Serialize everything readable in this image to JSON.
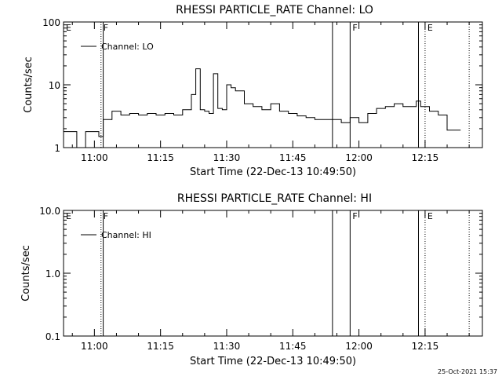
{
  "footer_timestamp": "25-Oct-2021 15:37",
  "chart_data": [
    {
      "type": "line",
      "title": "RHESSI PARTICLE_RATE Channel: LO",
      "xlabel": "Start Time (22-Dec-13 10:49:50)",
      "ylabel": "Counts/sec",
      "yscale": "log",
      "xlim": [
        "10:53",
        "12:28"
      ],
      "ylim": [
        1,
        100
      ],
      "x_ticks": [
        "11:00",
        "11:15",
        "11:30",
        "11:45",
        "12:00",
        "12:15"
      ],
      "y_ticks": [
        "1",
        "10",
        "100"
      ],
      "legend": {
        "position": "top-left",
        "entries": [
          "Channel: LO"
        ]
      },
      "markers": [
        {
          "label": "E",
          "time": "10:53",
          "style": "none"
        },
        {
          "label": "F",
          "time": "11:01.5",
          "style": "dotted"
        },
        {
          "label": "",
          "time": "11:02",
          "style": "solid"
        },
        {
          "label": "",
          "time": "11:54",
          "style": "solid"
        },
        {
          "label": "F",
          "time": "11:58",
          "style": "solid"
        },
        {
          "label": "",
          "time": "12:13.5",
          "style": "solid"
        },
        {
          "label": "E",
          "time": "12:15",
          "style": "dotted"
        },
        {
          "label": "",
          "time": "12:25",
          "style": "dotted"
        }
      ],
      "series": [
        {
          "name": "Channel: LO",
          "x": [
            "10:53",
            "10:55",
            "10:56",
            "10:58",
            "11:00",
            "11:01",
            "11:02",
            "11:04",
            "11:06",
            "11:08",
            "11:10",
            "11:12",
            "11:14",
            "11:16",
            "11:18",
            "11:20",
            "11:22",
            "11:23",
            "11:24",
            "11:25",
            "11:26",
            "11:27",
            "11:28",
            "11:29",
            "11:30",
            "11:31",
            "11:32",
            "11:34",
            "11:36",
            "11:38",
            "11:40",
            "11:42",
            "11:44",
            "11:46",
            "11:48",
            "11:50",
            "11:52",
            "11:54",
            "11:56",
            "11:58",
            "12:00",
            "12:02",
            "12:04",
            "12:06",
            "12:08",
            "12:10",
            "12:12",
            "12:13",
            "12:14",
            "12:16",
            "12:18",
            "12:20",
            "12:22"
          ],
          "y": [
            1.8,
            1.8,
            1.0,
            1.8,
            1.8,
            1.5,
            2.8,
            3.8,
            3.3,
            3.5,
            3.3,
            3.5,
            3.3,
            3.5,
            3.3,
            4.0,
            7.0,
            18.0,
            4.0,
            3.8,
            3.5,
            15.0,
            4.2,
            4.0,
            10.0,
            9.0,
            8.0,
            5.0,
            4.5,
            4.0,
            5.0,
            3.8,
            3.5,
            3.2,
            3.0,
            2.8,
            2.8,
            2.8,
            2.5,
            3.0,
            2.5,
            3.5,
            4.2,
            4.5,
            5.0,
            4.5,
            4.5,
            5.5,
            4.5,
            3.8,
            3.3,
            1.9,
            1.9
          ]
        }
      ]
    },
    {
      "type": "line",
      "title": "RHESSI PARTICLE_RATE Channel: HI",
      "xlabel": "Start Time (22-Dec-13 10:49:50)",
      "ylabel": "Counts/sec",
      "yscale": "log",
      "xlim": [
        "10:53",
        "12:28"
      ],
      "ylim": [
        0.1,
        10.0
      ],
      "x_ticks": [
        "11:00",
        "11:15",
        "11:30",
        "11:45",
        "12:00",
        "12:15"
      ],
      "y_ticks": [
        "0.1",
        "1.0",
        "10.0"
      ],
      "legend": {
        "position": "top-left",
        "entries": [
          "Channel: HI"
        ]
      },
      "markers": [
        {
          "label": "E",
          "time": "10:53",
          "style": "none"
        },
        {
          "label": "F",
          "time": "11:01.5",
          "style": "dotted"
        },
        {
          "label": "",
          "time": "11:02",
          "style": "solid"
        },
        {
          "label": "",
          "time": "11:54",
          "style": "solid"
        },
        {
          "label": "F",
          "time": "11:58",
          "style": "solid"
        },
        {
          "label": "",
          "time": "12:13.5",
          "style": "solid"
        },
        {
          "label": "E",
          "time": "12:15",
          "style": "dotted"
        },
        {
          "label": "",
          "time": "12:25",
          "style": "dotted"
        }
      ],
      "series": [
        {
          "name": "Channel: HI",
          "x": [],
          "y": []
        }
      ]
    }
  ]
}
